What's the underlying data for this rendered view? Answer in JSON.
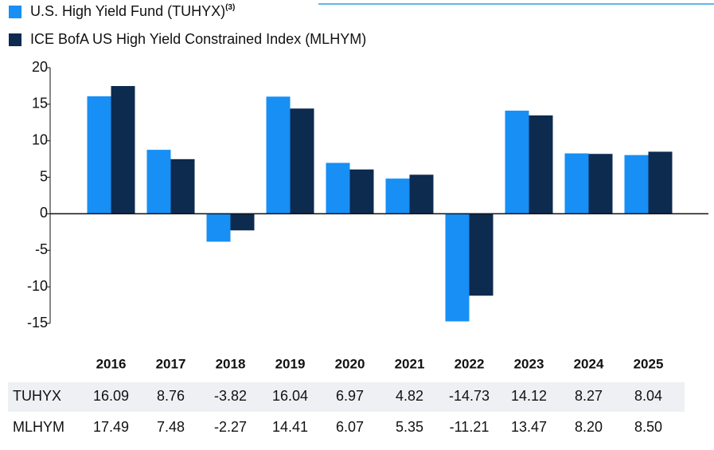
{
  "chart_data": {
    "type": "bar",
    "categories": [
      "2016",
      "2017",
      "2018",
      "2019",
      "2020",
      "2021",
      "2022",
      "2023",
      "2024",
      "2025"
    ],
    "series": [
      {
        "name": "U.S. High Yield Fund (TUHYX)",
        "name_note": "(3)",
        "table_label": "TUHYX",
        "color": "#178ff5",
        "values": [
          16.09,
          8.76,
          -3.82,
          16.04,
          6.97,
          4.82,
          -14.73,
          14.12,
          8.27,
          8.04
        ],
        "value_labels": [
          "16.09",
          "8.76",
          "-3.82",
          "16.04",
          "6.97",
          "4.82",
          "-14.73",
          "14.12",
          "8.27",
          "8.04"
        ]
      },
      {
        "name": "ICE BofA US High Yield Constrained Index (MLHYM)",
        "table_label": "MLHYM",
        "color": "#0d2a4f",
        "values": [
          17.49,
          7.48,
          -2.27,
          14.41,
          6.07,
          5.35,
          -11.21,
          13.47,
          8.2,
          8.5
        ],
        "value_labels": [
          "17.49",
          "7.48",
          "-2.27",
          "14.41",
          "6.07",
          "5.35",
          "-11.21",
          "13.47",
          "8.20",
          "8.50"
        ]
      }
    ],
    "ylim": [
      -15,
      20
    ],
    "yticks": [
      -15,
      -10,
      -5,
      0,
      5,
      10,
      15,
      20
    ]
  }
}
